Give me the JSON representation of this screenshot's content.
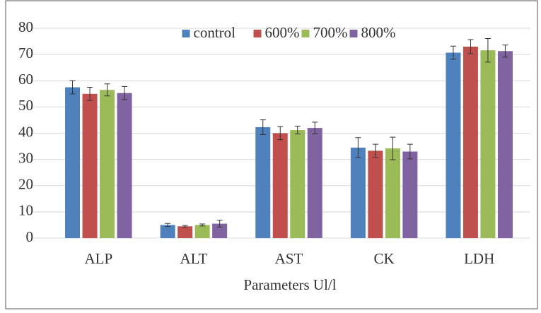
{
  "chart_data": {
    "type": "bar",
    "x_label": "Parameters Ul/l",
    "categories": [
      "ALP",
      "ALT",
      "AST",
      "CK",
      "LDH"
    ],
    "series": [
      {
        "name": "control",
        "color": "#4f81bd",
        "values": [
          57.5,
          5,
          42.3,
          34.5,
          70.7
        ],
        "errors": [
          2.5,
          0.6,
          2.8,
          3.8,
          2.5
        ]
      },
      {
        "name": "600%",
        "color": "#c0504d",
        "values": [
          55,
          4.5,
          40,
          33.3,
          73
        ],
        "errors": [
          2.5,
          0.3,
          2.5,
          2.5,
          2.7
        ]
      },
      {
        "name": "700%",
        "color": "#9bbb59",
        "values": [
          56.5,
          5,
          41.2,
          34.2,
          71.6
        ],
        "errors": [
          2.3,
          0.4,
          1.5,
          4.3,
          4.5
        ]
      },
      {
        "name": "800%",
        "color": "#8064a2",
        "values": [
          55.3,
          5.5,
          42,
          33,
          71.3
        ],
        "errors": [
          2.5,
          1.3,
          2.2,
          2.8,
          2.3
        ]
      }
    ],
    "ylim": [
      0,
      80
    ],
    "yticks": [
      0,
      10,
      20,
      30,
      40,
      50,
      60,
      70,
      80
    ],
    "grid": true,
    "legend": "top"
  }
}
